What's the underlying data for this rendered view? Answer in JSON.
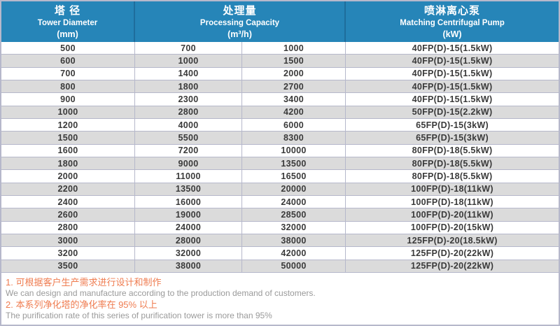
{
  "table": {
    "headers": [
      {
        "zh": "塔 径",
        "en": "Tower Diameter",
        "unit": "(mm)"
      },
      {
        "zh": "处理量",
        "en": "Processing Capacity",
        "unit": "(m³/h)"
      },
      {
        "zh": "喷淋离心泵",
        "en": "Matching Centrifugal Pump",
        "unit": "(kW)"
      }
    ],
    "rows": [
      [
        "500",
        "700",
        "1000",
        "40FP(D)-15(1.5kW)"
      ],
      [
        "600",
        "1000",
        "1500",
        "40FP(D)-15(1.5kW)"
      ],
      [
        "700",
        "1400",
        "2000",
        "40FP(D)-15(1.5kW)"
      ],
      [
        "800",
        "1800",
        "2700",
        "40FP(D)-15(1.5kW)"
      ],
      [
        "900",
        "2300",
        "3400",
        "40FP(D)-15(1.5kW)"
      ],
      [
        "1000",
        "2800",
        "4200",
        "50FP(D)-15(2.2kW)"
      ],
      [
        "1200",
        "4000",
        "6000",
        "65FP(D)-15(3kW)"
      ],
      [
        "1500",
        "5500",
        "8300",
        "65FP(D)-15(3kW)"
      ],
      [
        "1600",
        "7200",
        "10000",
        "80FP(D)-18(5.5kW)"
      ],
      [
        "1800",
        "9000",
        "13500",
        "80FP(D)-18(5.5kW)"
      ],
      [
        "2000",
        "11000",
        "16500",
        "80FP(D)-18(5.5kW)"
      ],
      [
        "2200",
        "13500",
        "20000",
        "100FP(D)-18(11kW)"
      ],
      [
        "2400",
        "16000",
        "24000",
        "100FP(D)-18(11kW)"
      ],
      [
        "2600",
        "19000",
        "28500",
        "100FP(D)-20(11kW)"
      ],
      [
        "2800",
        "24000",
        "32000",
        "100FP(D)-20(15kW)"
      ],
      [
        "3000",
        "28000",
        "38000",
        "125FP(D)-20(18.5kW)"
      ],
      [
        "3200",
        "32000",
        "42000",
        "125FP(D)-20(22kW)"
      ],
      [
        "3500",
        "38000",
        "50000",
        "125FP(D)-20(22kW)"
      ]
    ]
  },
  "notes": [
    {
      "zh": "1. 可根据客户生产需求进行设计和制作",
      "en": "We can design and manufacture according to the production demand of customers."
    },
    {
      "zh": "2. 本系列净化塔的净化率在 95% 以上",
      "en": "The purification rate of this series of purification tower is more than 95%"
    }
  ],
  "colors": {
    "header_bg": "#2685b8",
    "header_divider": "#1e6d9c",
    "row_stripe": "#dbdbdb",
    "grid_border": "#b6b8cb",
    "note_accent": "#ef7c50",
    "note_text": "#9a9a9a"
  }
}
